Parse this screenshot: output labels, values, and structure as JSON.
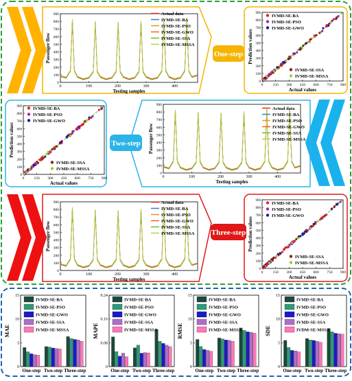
{
  "series_names": [
    "IVMD-SE-BA",
    "IVMD-SE-PSO",
    "IVMD-SE-GWO",
    "IVMD-SE-SSA",
    "IVMD-SE-MSSA"
  ],
  "bar_legend_names": {
    "MAE": [
      "IVMD-SE-BA",
      "IVMD-SE-PSO",
      "IVMD-SE-GWO",
      "IVMD-SE-SSA",
      "IVMD-SE-MSSA"
    ],
    "MAPE": [
      "IVMD-SE-BA",
      "IVMD-SE-PSO",
      "IVMD-SE-GWO",
      "IVMD-SE-SSA",
      "IVMD-SE-MSSA"
    ],
    "RMSE": [
      "IVMD-SE-BA",
      "IVMD-SE-PSO",
      "IVMD-SE-GWO",
      "IVMD-SE-SSA",
      "IVMD-SE-MSSA"
    ],
    "SDE": [
      "IVMD-SE-BA",
      "IVMD-SE-PSO",
      "IVMD-SE-GWO",
      "IVMD-SE-SSA",
      "IVDM-SE-MSSA"
    ]
  },
  "labels": {
    "actual_data": "Actual data",
    "one_step": "One-step",
    "two_step": "Two-step",
    "three_step": "Three-step",
    "testing_samples": "Testing samples",
    "passenger_flow": "Passenger flow",
    "prediction_values": "Prediction values",
    "actual_values": "Actual values"
  },
  "colors": {
    "BA": "#1a4a3a",
    "PSO": "#2e9a78",
    "GWO": "#1a1acc",
    "SSA": "#b06ec8",
    "MSSA": "#ff77bb",
    "actual_line": "#ee2222",
    "fit_line": "#3a3a9a",
    "arrow_orange": "#ffb300",
    "arrow_blue": "#1ab2ec",
    "arrow_red": "#ee1111",
    "box_orange": "#f5b400",
    "box_blue": "#2ab4e8",
    "box_red": "#e01818",
    "frame_green": "#2e9a3a",
    "frame_blue": "#2060b0"
  },
  "chart_data": [
    {
      "type": "line",
      "title": "One-step",
      "xlabel": "Testing samples",
      "ylabel": "Passenger flow",
      "xlim": [
        0,
        480
      ],
      "ylim": [
        0,
        900
      ],
      "xticks": [
        0,
        100,
        200,
        300,
        400
      ],
      "yticks": [
        0,
        100,
        200,
        300,
        400,
        500,
        600,
        700,
        800,
        900
      ],
      "series": [
        "Actual data",
        "IVMD-SE-BA",
        "IVMD-SE-PSO",
        "IVMD-SE-GWO",
        "IVMD-SE-SSA",
        "IVMD-SE-MSSA"
      ],
      "x": [
        0,
        20,
        35,
        42,
        49,
        60,
        80,
        100,
        115,
        122,
        129,
        140,
        160,
        180,
        195,
        202,
        209,
        220,
        240,
        260,
        275,
        282,
        289,
        300,
        320,
        340,
        355,
        362,
        369,
        380,
        400,
        420,
        435,
        442,
        449,
        460,
        478
      ],
      "y": [
        80,
        60,
        150,
        820,
        150,
        70,
        40,
        60,
        140,
        790,
        140,
        70,
        40,
        60,
        140,
        780,
        140,
        70,
        40,
        60,
        140,
        800,
        140,
        70,
        40,
        60,
        150,
        830,
        150,
        70,
        40,
        60,
        150,
        820,
        150,
        70,
        90
      ]
    },
    {
      "type": "scatter",
      "title": "One-step",
      "xlabel": "Actual values",
      "ylabel": "Prediction values",
      "xlim": [
        0,
        900
      ],
      "ylim": [
        0,
        900
      ],
      "xticks": [
        0,
        150,
        300,
        450,
        600,
        750,
        900
      ],
      "yticks": [
        0,
        100,
        200,
        300,
        400,
        500,
        600,
        700,
        800,
        900
      ],
      "series": [
        "IVMD-SE-BA",
        "IVMD-SE-PSO",
        "IVMD-SE-GWO",
        "IVMD-SE-SSA",
        "IVMD-SE-MSSA"
      ]
    },
    {
      "type": "scatter",
      "title": "Two-step",
      "xlabel": "Actual values",
      "ylabel": "Prediction values",
      "xlim": [
        0,
        900
      ],
      "ylim": [
        0,
        900
      ],
      "xticks": [
        0,
        150,
        300,
        450,
        600,
        750,
        900
      ],
      "yticks": [
        0,
        100,
        200,
        300,
        400,
        500,
        600,
        700,
        800,
        900
      ],
      "series": [
        "IVMD-SE-BA",
        "IVMD-SE-PSO",
        "IVMD-SE-GWO",
        "IVMD-SE-SSA",
        "IVMD-SE-MSSA"
      ]
    },
    {
      "type": "line",
      "title": "Two-step",
      "xlabel": "Testing samples",
      "ylabel": "Passenger flow",
      "xlim": [
        0,
        480
      ],
      "ylim": [
        0,
        900
      ],
      "xticks": [
        0,
        100,
        200,
        300,
        400
      ],
      "yticks": [
        0,
        100,
        200,
        300,
        400,
        500,
        600,
        700,
        800,
        900
      ],
      "series": [
        "Actual data",
        "IVMD-SE-BA",
        "IVMD-SE-PSO",
        "IVMD-SE-GWO",
        "IVMD-SE-SSA",
        "IVMD-SE-MSSA"
      ],
      "x": [
        0,
        20,
        35,
        42,
        49,
        60,
        80,
        100,
        115,
        122,
        129,
        140,
        160,
        180,
        195,
        202,
        209,
        220,
        240,
        260,
        275,
        282,
        289,
        300,
        320,
        340,
        355,
        362,
        369,
        380,
        400,
        420,
        435,
        442,
        449,
        460,
        478
      ],
      "y": [
        80,
        60,
        150,
        820,
        150,
        70,
        40,
        60,
        140,
        790,
        140,
        70,
        40,
        60,
        140,
        780,
        140,
        70,
        40,
        60,
        140,
        800,
        140,
        70,
        40,
        60,
        150,
        830,
        150,
        70,
        40,
        60,
        150,
        820,
        150,
        70,
        90
      ]
    },
    {
      "type": "line",
      "title": "Three-step",
      "xlabel": "Testing samples",
      "ylabel": "Passenger flow",
      "xlim": [
        0,
        480
      ],
      "ylim": [
        0,
        900
      ],
      "xticks": [
        0,
        100,
        200,
        300,
        400
      ],
      "yticks": [
        0,
        100,
        200,
        300,
        400,
        500,
        600,
        700,
        800,
        900
      ],
      "series": [
        "Actual data",
        "IVMD-SE-BA",
        "IVMD-SE-PSO",
        "IVMD-SE-GWO",
        "IVMD-SE-SSA",
        "IVMD-SE-MSSA"
      ],
      "x": [
        0,
        20,
        35,
        42,
        49,
        60,
        80,
        100,
        115,
        122,
        129,
        140,
        160,
        180,
        195,
        202,
        209,
        220,
        240,
        260,
        275,
        282,
        289,
        300,
        320,
        340,
        355,
        362,
        369,
        380,
        400,
        420,
        435,
        442,
        449,
        460,
        478
      ],
      "y": [
        80,
        60,
        150,
        820,
        150,
        70,
        40,
        60,
        140,
        790,
        140,
        70,
        40,
        60,
        140,
        780,
        140,
        70,
        40,
        60,
        140,
        800,
        140,
        70,
        40,
        60,
        150,
        830,
        150,
        70,
        40,
        60,
        150,
        820,
        150,
        70,
        90
      ]
    },
    {
      "type": "scatter",
      "title": "Three-step",
      "xlabel": "Actual values",
      "ylabel": "Prediction values",
      "xlim": [
        0,
        900
      ],
      "ylim": [
        0,
        900
      ],
      "xticks": [
        0,
        150,
        300,
        450,
        600,
        750,
        900
      ],
      "yticks": [
        0,
        100,
        200,
        300,
        400,
        500,
        600,
        700,
        800,
        900
      ],
      "series": [
        "IVMD-SE-BA",
        "IVMD-SE-PSO",
        "IVMD-SE-GWO",
        "IVMD-SE-SSA",
        "IVMD-SE-MSSA"
      ]
    },
    {
      "type": "bar",
      "ylabel": "MAE",
      "ylim": [
        0,
        15
      ],
      "yticks": [
        0,
        5,
        10,
        15
      ],
      "categories": [
        "One-step",
        "Two-step",
        "Three-step"
      ],
      "series": [
        {
          "name": "IVMD-SE-BA",
          "values": [
            4.0,
            4.2,
            6.3
          ]
        },
        {
          "name": "IVMD-SE-PSO",
          "values": [
            3.1,
            4.1,
            5.9
          ]
        },
        {
          "name": "IVMD-SE-GWO",
          "values": [
            2.7,
            3.9,
            5.7
          ]
        },
        {
          "name": "IVMD-SE-SSA",
          "values": [
            2.5,
            3.8,
            5.6
          ]
        },
        {
          "name": "IVMD-SE-MSSA",
          "values": [
            2.4,
            3.7,
            5.3
          ]
        }
      ]
    },
    {
      "type": "bar",
      "ylabel": "MAPE",
      "ylim": [
        0,
        0.24
      ],
      "yticks": [
        0.0,
        0.08,
        0.16,
        0.24
      ],
      "categories": [
        "One-step",
        "Two-step",
        "Three-step"
      ],
      "series": [
        {
          "name": "IVMD-SE-BA",
          "values": [
            0.1,
            0.063,
            0.125
          ]
        },
        {
          "name": "IVMD-SE-PSO",
          "values": [
            0.05,
            0.072,
            0.085
          ]
        },
        {
          "name": "IVMD-SE-GWO",
          "values": [
            0.035,
            0.045,
            0.078
          ]
        },
        {
          "name": "IVMD-SE-SSA",
          "values": [
            0.045,
            0.047,
            0.072
          ]
        },
        {
          "name": "IVMD-SE-MSSA",
          "values": [
            0.033,
            0.046,
            0.067
          ]
        }
      ]
    },
    {
      "type": "bar",
      "ylabel": "RMSE",
      "ylim": [
        0,
        15
      ],
      "yticks": [
        0,
        5,
        10,
        15
      ],
      "categories": [
        "One-step",
        "Two-step",
        "Three-step"
      ],
      "series": [
        {
          "name": "IVMD-SE-BA",
          "values": [
            5.7,
            6.0,
            8.1
          ]
        },
        {
          "name": "IVMD-SE-PSO",
          "values": [
            4.2,
            5.8,
            7.6
          ]
        },
        {
          "name": "IVMD-SE-GWO",
          "values": [
            3.6,
            5.6,
            7.3
          ]
        },
        {
          "name": "IVMD-SE-SSA",
          "values": [
            3.4,
            5.5,
            7.2
          ]
        },
        {
          "name": "IVMD-SE-MSSA",
          "values": [
            3.2,
            5.3,
            7.0
          ]
        }
      ]
    },
    {
      "type": "bar",
      "ylabel": "SDE",
      "ylim": [
        0,
        15
      ],
      "yticks": [
        0,
        5,
        10,
        15
      ],
      "categories": [
        "One-step",
        "Two-step",
        "Three-step"
      ],
      "series": [
        {
          "name": "IVMD-SE-BA",
          "values": [
            5.5,
            5.9,
            8.0
          ]
        },
        {
          "name": "IVMD-SE-PSO",
          "values": [
            4.0,
            5.6,
            7.3
          ]
        },
        {
          "name": "IVMD-SE-GWO",
          "values": [
            3.4,
            5.5,
            7.0
          ]
        },
        {
          "name": "IVMD-SE-SSA",
          "values": [
            3.3,
            5.3,
            6.9
          ]
        },
        {
          "name": "IVDM-SE-MSSA",
          "values": [
            3.1,
            5.1,
            6.8
          ]
        }
      ]
    }
  ]
}
